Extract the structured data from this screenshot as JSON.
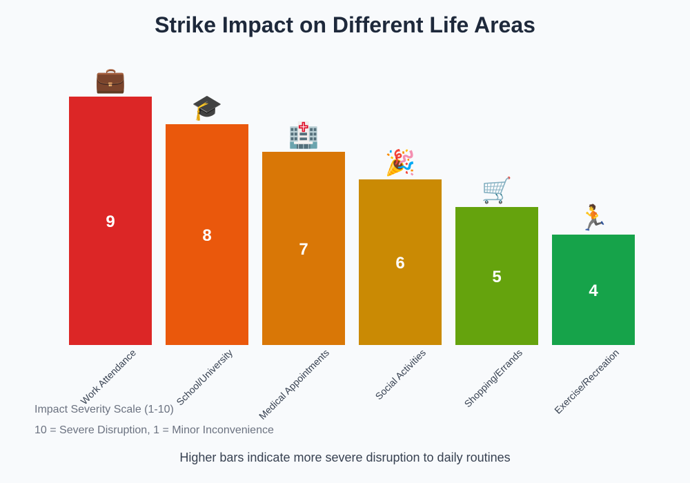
{
  "chart_data": {
    "type": "bar",
    "title": "Strike Impact on Different Life Areas",
    "categories": [
      "Work Attendance",
      "School/University",
      "Medical Appointments",
      "Social Activities",
      "Shopping/Errands",
      "Exercise/Recreation"
    ],
    "values": [
      9,
      8,
      7,
      6,
      5,
      4
    ],
    "colors": [
      "#dc2626",
      "#ea580c",
      "#d97706",
      "#ca8a04",
      "#65a30d",
      "#16a34a"
    ],
    "icons": [
      "💼",
      "🎓",
      "🏥",
      "🎉",
      "🛒",
      "🏃"
    ],
    "icon_names": [
      "briefcase-icon",
      "graduation-cap-icon",
      "hospital-icon",
      "party-icon",
      "shopping-cart-icon",
      "runner-icon"
    ],
    "ylim": [
      0,
      10
    ],
    "grid": false,
    "legend": "none"
  },
  "notes": {
    "scale": "Impact Severity Scale (1-10)",
    "meaning": "10 = Severe Disruption, 1 = Minor Inconvenience"
  },
  "footer": "Higher bars indicate more severe disruption to daily routines"
}
